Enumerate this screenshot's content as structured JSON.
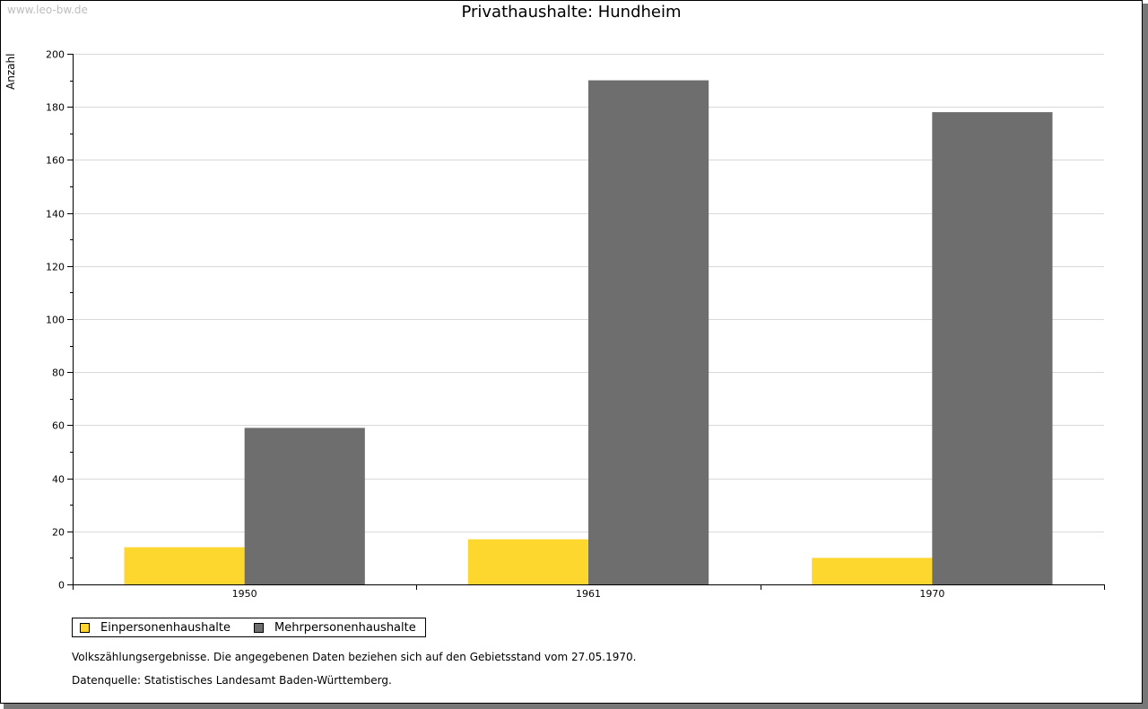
{
  "watermark": "www.leo-bw.de",
  "colors": {
    "series1": "#fdd62e",
    "series2": "#6e6e6e",
    "grid": "#d9d9d9",
    "axis": "#000000"
  },
  "notes": {
    "line1": "Volkszählungsergebnisse. Die angegebenen Daten beziehen sich auf den Gebietsstand vom 27.05.1970.",
    "line2": "Datenquelle: Statistisches Landesamt Baden-Württemberg."
  },
  "chart_data": {
    "type": "bar",
    "title": "Privathaushalte: Hundheim",
    "xlabel": "",
    "ylabel": "Anzahl",
    "categories": [
      "1950",
      "1961",
      "1970"
    ],
    "series": [
      {
        "name": "Einpersonenhaushalte",
        "values": [
          14,
          17,
          10
        ]
      },
      {
        "name": "Mehrpersonenhaushalte",
        "values": [
          59,
          190,
          178
        ]
      }
    ],
    "ylim": [
      0,
      200
    ],
    "yticks": [
      0,
      20,
      40,
      60,
      80,
      100,
      120,
      140,
      160,
      180,
      200
    ],
    "grid": true,
    "legend": "bottom-left"
  }
}
